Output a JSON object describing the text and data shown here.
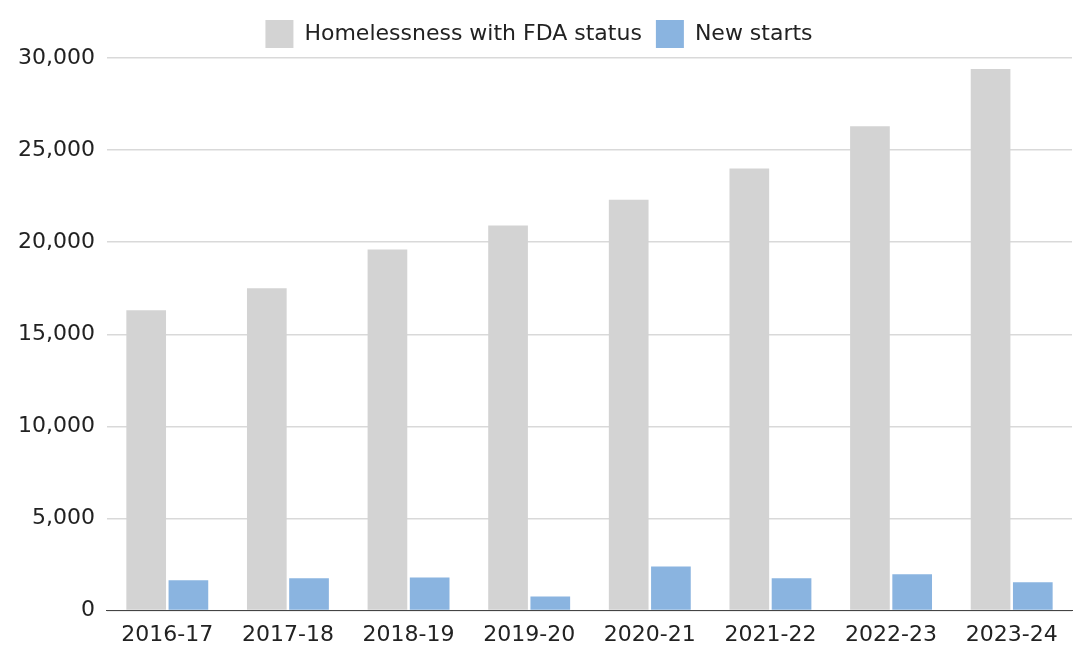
{
  "chart_data": {
    "type": "bar",
    "categories": [
      "2016-17",
      "2017-18",
      "2018-19",
      "2019-20",
      "2020-21",
      "2021-22",
      "2022-23",
      "2023-24"
    ],
    "series": [
      {
        "name": "Homelessness with FDA status",
        "color": "#d3d3d3",
        "values": [
          16300,
          17500,
          19600,
          20900,
          22300,
          24000,
          26300,
          29400
        ]
      },
      {
        "name": "New starts",
        "color": "#8ab4e0",
        "values": [
          1650,
          1750,
          1800,
          770,
          2400,
          1750,
          1970,
          1540
        ]
      }
    ],
    "ylim": [
      0,
      30000
    ],
    "yticks": [
      {
        "value": 0,
        "label": "0"
      },
      {
        "value": 5000,
        "label": "5,000"
      },
      {
        "value": 10000,
        "label": "10,000"
      },
      {
        "value": 15000,
        "label": "15,000"
      },
      {
        "value": 20000,
        "label": "20,000"
      },
      {
        "value": 25000,
        "label": "25,000"
      },
      {
        "value": 30000,
        "label": "30,000"
      }
    ],
    "grid": "y",
    "legend": "top"
  }
}
